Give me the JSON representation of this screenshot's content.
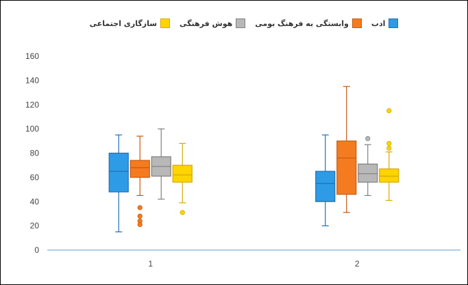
{
  "chart_data": {
    "type": "box",
    "categories": [
      "1",
      "2"
    ],
    "ylim": [
      0,
      160
    ],
    "yticks": [
      "0",
      "20",
      "40",
      "60",
      "80",
      "100",
      "120",
      "140",
      "160"
    ],
    "grid": false,
    "legend_position": "top",
    "series": [
      {
        "name": "ادب",
        "color": "#2e9be6",
        "stroke": "#1f6fb5",
        "boxes": [
          {
            "category": "1",
            "min": 15,
            "q1": 48,
            "median": 65,
            "q3": 80,
            "max": 95,
            "outliers": []
          },
          {
            "category": "2",
            "min": 20,
            "q1": 40,
            "median": 55,
            "q3": 65,
            "max": 95,
            "outliers": []
          }
        ]
      },
      {
        "name": "وابستگی به فرهنگ بومی",
        "color": "#f47b20",
        "stroke": "#c55a11",
        "boxes": [
          {
            "category": "1",
            "min": 45,
            "q1": 60,
            "median": 68,
            "q3": 74,
            "max": 94,
            "outliers": [
              35,
              28,
              24,
              21
            ]
          },
          {
            "category": "2",
            "min": 31,
            "q1": 46,
            "median": 76,
            "q3": 90,
            "max": 135,
            "outliers": []
          }
        ]
      },
      {
        "name": "هوش فرهنگی",
        "color": "#b8b8b8",
        "stroke": "#7f7f7f",
        "boxes": [
          {
            "category": "1",
            "min": 42,
            "q1": 61,
            "median": 69,
            "q3": 77,
            "max": 100,
            "outliers": []
          },
          {
            "category": "2",
            "min": 45,
            "q1": 56,
            "median": 63,
            "q3": 71,
            "max": 87,
            "outliers": [
              92
            ]
          }
        ]
      },
      {
        "name": "سازگاری اجتماعی",
        "color": "#ffd400",
        "stroke": "#d4a900",
        "boxes": [
          {
            "category": "1",
            "min": 39,
            "q1": 56,
            "median": 62,
            "q3": 70,
            "max": 88,
            "outliers": [
              31
            ]
          },
          {
            "category": "2",
            "min": 41,
            "q1": 56,
            "median": 61,
            "q3": 67,
            "max": 81,
            "outliers": [
              84,
              88,
              115
            ]
          }
        ]
      }
    ]
  }
}
